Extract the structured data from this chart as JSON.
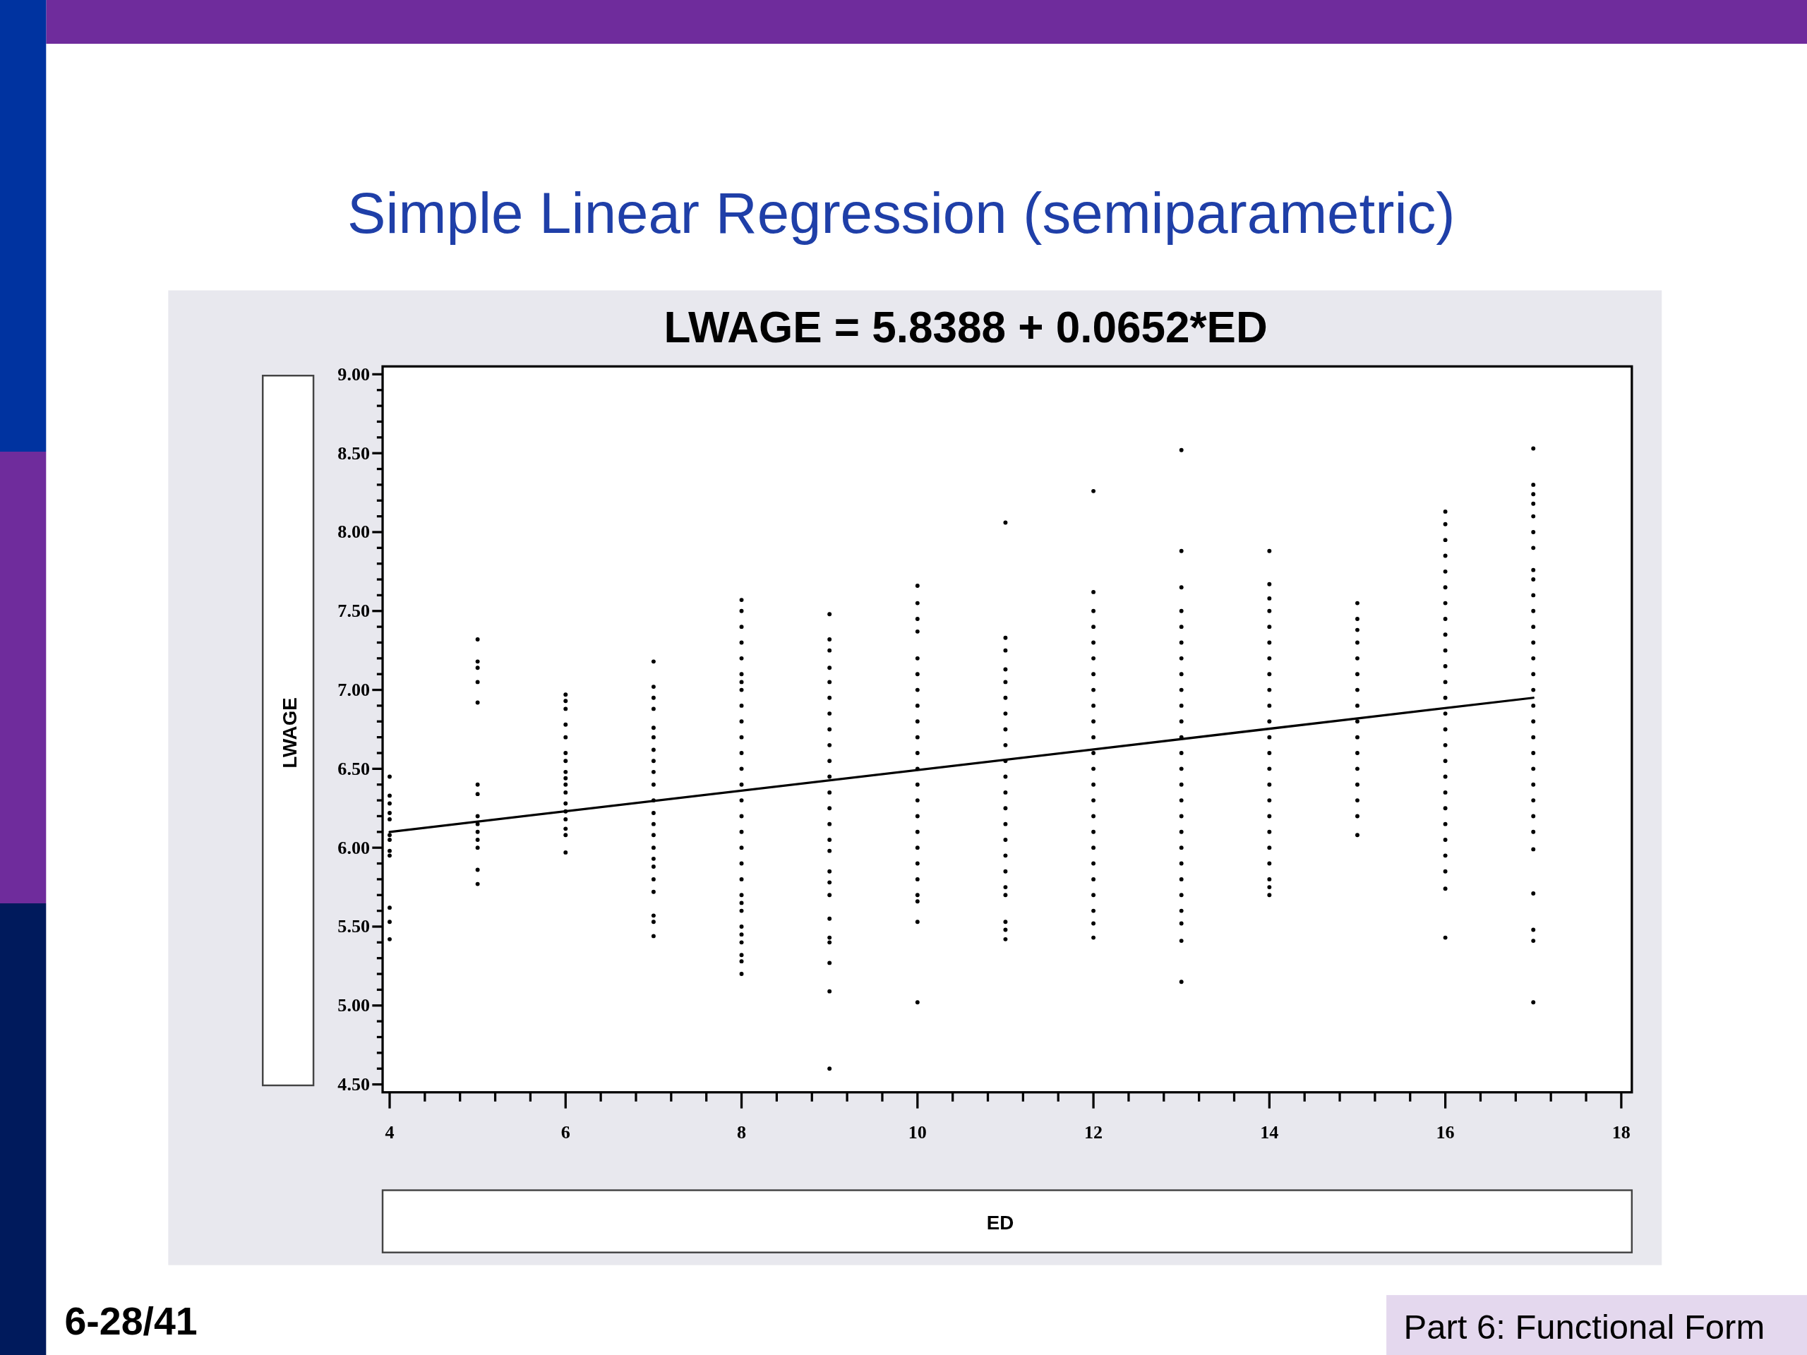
{
  "chart_data": {
    "type": "scatter",
    "title": "Simple Linear Regression (semiparametric)",
    "subtitle": "LWAGE  =  5.8388 + 0.0652*ED",
    "xlabel": "ED",
    "ylabel": "LWAGE",
    "annotations": [
      "6-28/41",
      "Part 6: Functional Form"
    ],
    "xlim": [
      3.92,
      18.12
    ],
    "ylim": [
      4.45,
      9.05
    ],
    "xticks": [
      4,
      {
        "value": 4.4,
        "label": null
      },
      {
        "value": 4.8,
        "label": null
      },
      {
        "value": 5.2,
        "label": null
      },
      {
        "value": 5.6,
        "label": null
      },
      6,
      {
        "value": 6.4,
        "label": null
      },
      {
        "value": 6.8,
        "label": null
      },
      {
        "value": 7.2,
        "label": null
      },
      {
        "value": 7.6,
        "label": null
      },
      8,
      {
        "value": 8.4,
        "label": null
      },
      {
        "value": 8.8,
        "label": null
      },
      {
        "value": 9.2,
        "label": null
      },
      {
        "value": 9.6,
        "label": null
      },
      10,
      {
        "value": 10.4,
        "label": null
      },
      {
        "value": 10.8,
        "label": null
      },
      {
        "value": 11.2,
        "label": null
      },
      {
        "value": 11.6,
        "label": null
      },
      12,
      {
        "value": 12.4,
        "label": null
      },
      {
        "value": 12.8,
        "label": null
      },
      {
        "value": 13.2,
        "label": null
      },
      {
        "value": 13.6,
        "label": null
      },
      14,
      {
        "value": 14.4,
        "label": null
      },
      {
        "value": 14.8,
        "label": null
      },
      {
        "value": 15.2,
        "label": null
      },
      {
        "value": 15.6,
        "label": null
      },
      16,
      {
        "value": 16.4,
        "label": null
      },
      {
        "value": 16.8,
        "label": null
      },
      {
        "value": 17.2,
        "label": null
      },
      {
        "value": 17.6,
        "label": null
      },
      18
    ],
    "yticks": [
      {
        "value": 4.5,
        "label": "4.50"
      },
      {
        "value": 4.6,
        "label": null
      },
      {
        "value": 4.7,
        "label": null
      },
      {
        "value": 4.8,
        "label": null
      },
      {
        "value": 4.9,
        "label": null
      },
      {
        "value": 5,
        "label": "5.00"
      },
      {
        "value": 5.1,
        "label": null
      },
      {
        "value": 5.2,
        "label": null
      },
      {
        "value": 5.3,
        "label": null
      },
      {
        "value": 5.4,
        "label": null
      },
      {
        "value": 5.5,
        "label": "5.50"
      },
      {
        "value": 5.6,
        "label": null
      },
      {
        "value": 5.7,
        "label": null
      },
      {
        "value": 5.8,
        "label": null
      },
      {
        "value": 5.9,
        "label": null
      },
      {
        "value": 6,
        "label": "6.00"
      },
      {
        "value": 6.1,
        "label": null
      },
      {
        "value": 6.2,
        "label": null
      },
      {
        "value": 6.3,
        "label": null
      },
      {
        "value": 6.4,
        "label": null
      },
      {
        "value": 6.5,
        "label": "6.50"
      },
      {
        "value": 6.6,
        "label": null
      },
      {
        "value": 6.7,
        "label": null
      },
      {
        "value": 6.8,
        "label": null
      },
      {
        "value": 6.9,
        "label": null
      },
      {
        "value": 7,
        "label": "7.00"
      },
      {
        "value": 7.1,
        "label": null
      },
      {
        "value": 7.2,
        "label": null
      },
      {
        "value": 7.3,
        "label": null
      },
      {
        "value": 7.4,
        "label": null
      },
      {
        "value": 7.5,
        "label": "7.50"
      },
      {
        "value": 7.6,
        "label": null
      },
      {
        "value": 7.7,
        "label": null
      },
      {
        "value": 7.8,
        "label": null
      },
      {
        "value": 7.9,
        "label": null
      },
      {
        "value": 8,
        "label": "8.00"
      },
      {
        "value": 8.1,
        "label": null
      },
      {
        "value": 8.2,
        "label": null
      },
      {
        "value": 8.3,
        "label": null
      },
      {
        "value": 8.4,
        "label": null
      },
      {
        "value": 8.5,
        "label": "8.50"
      },
      {
        "value": 8.6,
        "label": null
      },
      {
        "value": 8.7,
        "label": null
      },
      {
        "value": 8.8,
        "label": null
      },
      {
        "value": 8.9,
        "label": null
      },
      {
        "value": 9,
        "label": "9.00"
      }
    ],
    "series": [
      {
        "type": "scatter",
        "marker": "circle",
        "color": "#000000",
        "x": [
          4,
          4,
          4,
          4,
          4,
          4,
          4,
          4,
          4,
          4,
          4,
          4,
          5,
          5,
          5,
          5,
          5,
          5,
          5,
          5,
          5,
          5,
          5,
          5,
          5,
          5,
          6,
          6,
          6,
          6,
          6,
          6,
          6,
          6,
          6,
          6,
          6,
          6,
          6,
          6,
          6,
          6,
          6,
          7,
          7,
          7,
          7,
          7,
          7,
          7,
          7,
          7,
          7,
          7,
          7,
          7,
          7,
          7,
          7,
          7,
          7,
          7,
          7,
          7,
          7,
          8,
          8,
          8,
          8,
          8,
          8,
          8,
          8,
          8,
          8,
          8,
          8,
          8,
          8,
          8,
          8,
          8,
          8,
          8,
          8,
          8,
          8,
          8,
          8,
          8,
          8,
          8,
          8,
          8,
          9,
          9,
          9,
          9,
          9,
          9,
          9,
          9,
          9,
          9,
          9,
          9,
          9,
          9,
          9,
          9,
          9,
          9,
          9,
          9,
          9,
          9,
          9,
          9,
          9,
          10,
          10,
          10,
          10,
          10,
          10,
          10,
          10,
          10,
          10,
          10,
          10,
          10,
          10,
          10,
          10,
          10,
          10,
          10,
          10,
          10,
          10,
          10,
          11,
          11,
          11,
          11,
          11,
          11,
          11,
          11,
          11,
          11,
          11,
          11,
          11,
          11,
          11,
          11,
          11,
          11,
          11,
          11,
          11,
          11,
          12,
          12,
          12,
          12,
          12,
          12,
          12,
          12,
          12,
          12,
          12,
          12,
          12,
          12,
          12,
          12,
          12,
          12,
          12,
          12,
          12,
          12,
          12,
          12,
          13,
          13,
          13,
          13,
          13,
          13,
          13,
          13,
          13,
          13,
          13,
          13,
          13,
          13,
          13,
          13,
          13,
          13,
          13,
          13,
          13,
          13,
          13,
          13,
          13,
          13,
          14,
          14,
          14,
          14,
          14,
          14,
          14,
          14,
          14,
          14,
          14,
          14,
          14,
          14,
          14,
          14,
          14,
          14,
          14,
          14,
          14,
          14,
          14,
          15,
          15,
          15,
          15,
          15,
          15,
          15,
          15,
          15,
          15,
          15,
          15,
          15,
          15,
          15,
          15,
          16,
          16,
          16,
          16,
          16,
          16,
          16,
          16,
          16,
          16,
          16,
          16,
          16,
          16,
          16,
          16,
          16,
          16,
          16,
          16,
          16,
          16,
          16,
          16,
          16,
          16,
          17,
          17,
          17,
          17,
          17,
          17,
          17,
          17,
          17,
          17,
          17,
          17,
          17,
          17,
          17,
          17,
          17,
          17,
          17,
          17,
          17,
          17,
          17,
          17,
          17,
          17,
          17,
          17,
          17,
          17
        ],
        "values": [
          6.45,
          6.33,
          6.28,
          6.22,
          6.18,
          6.08,
          6.05,
          5.98,
          5.95,
          5.62,
          5.53,
          5.42,
          7.32,
          7.18,
          7.14,
          7.05,
          6.92,
          6.4,
          6.34,
          6.2,
          6.15,
          6.1,
          6.05,
          6,
          5.86,
          5.77,
          6.97,
          6.93,
          6.88,
          6.78,
          6.7,
          6.6,
          6.55,
          6.48,
          6.44,
          6.4,
          6.35,
          6.28,
          6.23,
          6.18,
          6.12,
          6.08,
          5.97,
          7.18,
          7.02,
          6.95,
          6.88,
          6.76,
          6.7,
          6.62,
          6.55,
          6.48,
          6.4,
          6.3,
          6.22,
          6.15,
          6.08,
          6,
          5.93,
          5.88,
          5.8,
          5.72,
          5.57,
          5.53,
          5.44,
          7.57,
          7.5,
          7.4,
          7.3,
          7.2,
          7.1,
          7.05,
          7,
          6.9,
          6.8,
          6.7,
          6.6,
          6.5,
          6.4,
          6.3,
          6.2,
          6.1,
          6,
          5.9,
          5.8,
          5.7,
          5.65,
          5.6,
          5.5,
          5.45,
          5.4,
          5.32,
          5.28,
          5.2,
          7.48,
          7.32,
          7.25,
          7.14,
          7.05,
          6.95,
          6.85,
          6.75,
          6.65,
          6.55,
          6.45,
          6.35,
          6.25,
          6.15,
          6.05,
          5.98,
          5.85,
          5.78,
          5.7,
          5.55,
          5.43,
          5.4,
          5.27,
          5.09,
          4.6,
          7.66,
          7.55,
          7.45,
          7.37,
          7.2,
          7.1,
          7,
          6.9,
          6.8,
          6.7,
          6.6,
          6.5,
          6.4,
          6.3,
          6.2,
          6.1,
          6,
          5.9,
          5.8,
          5.7,
          5.66,
          5.53,
          5.02,
          8.06,
          7.33,
          7.25,
          7.13,
          7.05,
          6.95,
          6.85,
          6.75,
          6.65,
          6.55,
          6.45,
          6.35,
          6.25,
          6.15,
          6.05,
          5.95,
          5.85,
          5.75,
          5.7,
          5.53,
          5.48,
          5.42,
          8.26,
          7.62,
          7.5,
          7.4,
          7.3,
          7.2,
          7.1,
          7,
          6.9,
          6.8,
          6.7,
          6.6,
          6.5,
          6.4,
          6.3,
          6.2,
          6.1,
          6,
          5.9,
          5.8,
          5.7,
          5.6,
          5.52,
          5.43,
          8.52,
          7.88,
          7.65,
          7.5,
          7.4,
          7.3,
          7.2,
          7.1,
          7,
          6.9,
          6.8,
          6.7,
          6.6,
          6.5,
          6.4,
          6.3,
          6.2,
          6.1,
          6,
          5.9,
          5.8,
          5.7,
          5.6,
          5.52,
          5.41,
          5.15,
          7.88,
          7.67,
          7.58,
          7.5,
          7.4,
          7.3,
          7.2,
          7.1,
          7,
          6.9,
          6.8,
          6.7,
          6.6,
          6.5,
          6.4,
          6.3,
          6.2,
          6.1,
          6,
          5.9,
          5.8,
          5.75,
          5.7,
          7.55,
          7.45,
          7.38,
          7.3,
          7.2,
          7.1,
          7,
          6.9,
          6.8,
          6.7,
          6.6,
          6.5,
          6.4,
          6.3,
          6.2,
          6.08,
          8.13,
          8.05,
          7.95,
          7.85,
          7.75,
          7.65,
          7.55,
          7.45,
          7.35,
          7.25,
          7.15,
          7.05,
          6.95,
          6.85,
          6.75,
          6.65,
          6.55,
          6.45,
          6.35,
          6.25,
          6.15,
          6.05,
          5.95,
          5.85,
          5.74,
          5.43,
          8.53,
          8.3,
          8.24,
          8.18,
          8.1,
          8,
          7.9,
          7.76,
          7.7,
          7.6,
          7.5,
          7.4,
          7.3,
          7.2,
          7.1,
          7,
          6.9,
          6.8,
          6.7,
          6.6,
          6.5,
          6.4,
          6.3,
          6.2,
          6.1,
          5.99,
          5.71,
          5.48,
          5.41,
          5.02
        ]
      },
      {
        "type": "line",
        "marker": "none",
        "color": "#000000",
        "x": [
          4,
          17
        ],
        "values": [
          6.1,
          6.95
        ]
      }
    ]
  }
}
